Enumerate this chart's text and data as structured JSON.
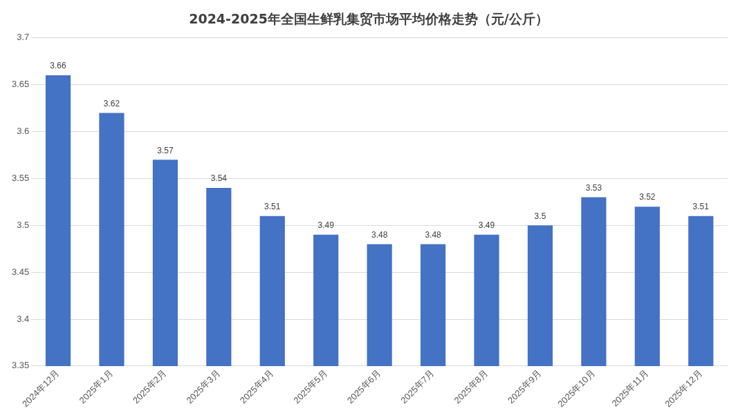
{
  "chart_data": {
    "type": "bar",
    "title": "2024-2025年全国生鲜乳集贸市场平均价格走势（元/公斤）",
    "categories": [
      "2024年12月",
      "2025年1月",
      "2025年2月",
      "2025年3月",
      "2025年4月",
      "2025年5月",
      "2025年6月",
      "2025年7月",
      "2025年8月",
      "2025年9月",
      "2025年10月",
      "2025年11月",
      "2025年12月"
    ],
    "values": [
      3.66,
      3.62,
      3.57,
      3.54,
      3.51,
      3.49,
      3.48,
      3.48,
      3.49,
      3.5,
      3.53,
      3.52,
      3.51
    ],
    "color": "#4472c4",
    "ylim": [
      3.35,
      3.7
    ],
    "yticks": [
      3.35,
      3.4,
      3.45,
      3.5,
      3.55,
      3.6,
      3.65,
      3.7
    ],
    "grid": "y",
    "data_labels": true,
    "legend": false
  }
}
